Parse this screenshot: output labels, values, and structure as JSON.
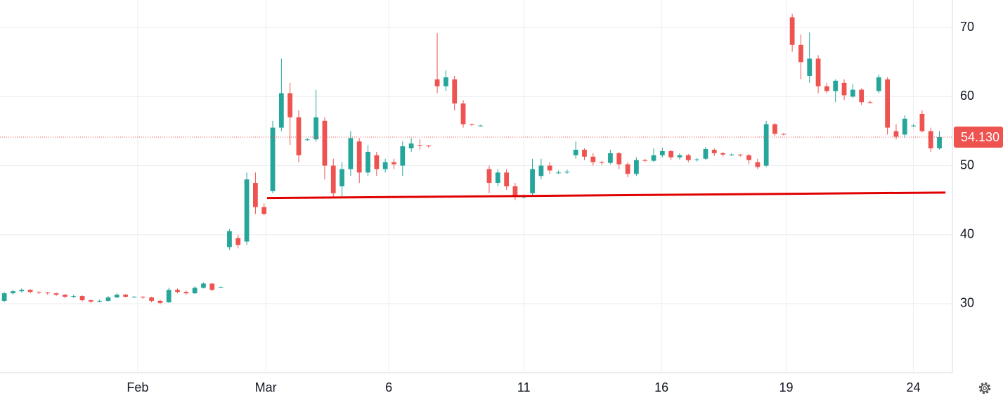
{
  "chart_data": {
    "type": "candlestick",
    "xlim": [
      0,
      110
    ],
    "xticks": [
      {
        "value": 15.9,
        "label": "Feb"
      },
      {
        "value": 30.7,
        "label": "Mar"
      },
      {
        "value": 44.9,
        "label": "6"
      },
      {
        "value": 60.5,
        "label": "11"
      },
      {
        "value": 76.4,
        "label": "16"
      },
      {
        "value": 90.8,
        "label": "19"
      },
      {
        "value": 105.5,
        "label": "24"
      }
    ],
    "ylim": [
      20,
      74
    ],
    "yticks": [
      30,
      40,
      50,
      60,
      70
    ],
    "grid": true,
    "up_color": "#26a69a",
    "down_color": "#ef5350",
    "open": [
      30.4,
      31.5,
      31.8,
      32.0,
      31.7,
      31.6,
      31.5,
      31.3,
      31.0,
      31.1,
      30.5,
      30.3,
      30.4,
      30.9,
      31.3,
      31.0,
      31.0,
      30.9,
      30.4,
      30.2,
      32.0,
      31.7,
      31.5,
      32.3,
      32.9,
      32.4,
      38.2,
      39.5,
      39,
      47.5,
      44,
      46.3,
      55.5,
      60.5,
      57,
      53.8,
      53.8,
      56.5,
      50,
      47,
      49.5,
      53.5,
      49,
      51.5,
      49.5,
      50.5,
      50,
      52.5,
      53,
      52.9,
      62.5,
      61.5,
      62.5,
      59,
      56,
      55.8,
      49.5,
      47.5,
      49,
      47,
      45.5,
      46,
      48.5,
      50,
      49,
      49,
      51.5,
      52.3,
      51.3,
      50.5,
      50.4,
      51.8,
      50.2,
      48.8,
      50.8,
      50.7,
      51.5,
      52.1,
      51.2,
      51.5,
      50.8,
      51,
      52.3,
      51.8,
      51.6,
      51.6,
      51.5,
      50.5,
      50,
      56,
      54.6,
      71.5,
      67.5,
      63,
      65.5,
      61.5,
      60.8,
      62,
      60,
      61,
      59.2,
      60.8,
      62.5,
      55,
      54.5,
      55.8,
      57.5,
      55,
      52.5
    ],
    "high": [
      31.7,
      32.0,
      32.2,
      32.1,
      31.8,
      31.7,
      31.6,
      31.4,
      31.3,
      31.2,
      30.6,
      30.6,
      31.1,
      31.5,
      31.4,
      31.1,
      31.1,
      31.0,
      30.6,
      32.3,
      32.2,
      31.9,
      32.5,
      33.1,
      33.0,
      32.5,
      40.8,
      40,
      49,
      49,
      44.5,
      56.5,
      65.5,
      62,
      58,
      54,
      61,
      57,
      51,
      50.5,
      55,
      54,
      53,
      52,
      51,
      51,
      53.5,
      54,
      53.8,
      53,
      69.2,
      63.8,
      63,
      59.5,
      56.1,
      55.9,
      50,
      49.5,
      49.5,
      47.5,
      45.8,
      51,
      51,
      50.5,
      49.3,
      49.4,
      53.5,
      52.5,
      51.8,
      50.7,
      52.3,
      52,
      50.5,
      51.2,
      51,
      52.5,
      52.6,
      52.3,
      51.8,
      51.7,
      51.1,
      52.7,
      52.5,
      52,
      51.8,
      51.7,
      51.7,
      51,
      56.5,
      56.2,
      54.7,
      72,
      69,
      69.3,
      66,
      62,
      62.5,
      62.5,
      61.8,
      61.2,
      59.4,
      63.2,
      62.8,
      56,
      57.3,
      56,
      58,
      55.5,
      55
    ],
    "low": [
      30.2,
      31.3,
      31.6,
      31.5,
      31.4,
      31.3,
      31.1,
      30.8,
      30.8,
      30.3,
      30.1,
      30.2,
      30.3,
      30.8,
      30.9,
      30.9,
      30.7,
      30.2,
      29.9,
      30.1,
      31.5,
      31.3,
      31.4,
      32.2,
      31.8,
      32.3,
      37.8,
      38,
      38.5,
      43,
      42.8,
      46,
      55,
      53,
      50.5,
      53.6,
      53.5,
      48,
      45.5,
      45.5,
      48.5,
      47.5,
      48.5,
      48.5,
      49,
      49.5,
      48.5,
      52,
      52.3,
      52.6,
      60.5,
      60.8,
      58,
      55.5,
      55.7,
      55.7,
      46,
      47,
      46.5,
      45,
      45.2,
      45.5,
      48,
      48.8,
      48.8,
      48.8,
      51,
      50.8,
      50,
      50.1,
      50.2,
      49.5,
      48.3,
      48.5,
      50.5,
      50.5,
      51.2,
      50.8,
      50.9,
      50.5,
      50.6,
      50.8,
      51.4,
      51.3,
      51.4,
      51.3,
      50.2,
      49.5,
      49.8,
      54.3,
      54.4,
      66.5,
      62.5,
      62,
      60.5,
      60.5,
      59.2,
      59.5,
      59.8,
      58.8,
      59,
      60.5,
      54.5,
      53.8,
      54,
      55.6,
      54.8,
      52,
      52.3
    ],
    "close": [
      31.5,
      31.8,
      32.0,
      31.7,
      31.6,
      31.5,
      31.3,
      31.0,
      31.1,
      30.5,
      30.3,
      30.4,
      30.9,
      31.3,
      31.0,
      31.0,
      30.9,
      30.4,
      30.1,
      32.0,
      31.7,
      31.5,
      32.3,
      32.9,
      32.0,
      32.4,
      40.5,
      38.5,
      48,
      44,
      43,
      55.5,
      60.5,
      57,
      51.5,
      53.8,
      57,
      50,
      46,
      49.5,
      54,
      49,
      52,
      49.5,
      50.5,
      50.2,
      52.8,
      53.2,
      52.9,
      52.8,
      61.5,
      62.8,
      59,
      56,
      55.9,
      55.8,
      47.5,
      49,
      47,
      45.5,
      45.5,
      49.5,
      50,
      49.3,
      49,
      49.1,
      52.3,
      51.3,
      50.5,
      50.4,
      51.8,
      50.2,
      48.8,
      50.8,
      50.7,
      51.5,
      52.1,
      51.2,
      51.5,
      50.8,
      50.9,
      52.4,
      51.8,
      51.6,
      51.6,
      51.5,
      50.8,
      49.8,
      56,
      54.6,
      54.5,
      67.5,
      65,
      65.5,
      61.5,
      60.8,
      62.3,
      60.2,
      61,
      59.2,
      59.1,
      62.8,
      55.5,
      54.2,
      56.8,
      55.8,
      55,
      52.5,
      54.13
    ],
    "trendline": {
      "x": [
        30.85,
        109.2
      ],
      "y": [
        45.3,
        46.1
      ],
      "color": "#e00000"
    },
    "last_price": 54.13,
    "last_price_label": "54.130",
    "last_price_color": "#ef5350"
  }
}
